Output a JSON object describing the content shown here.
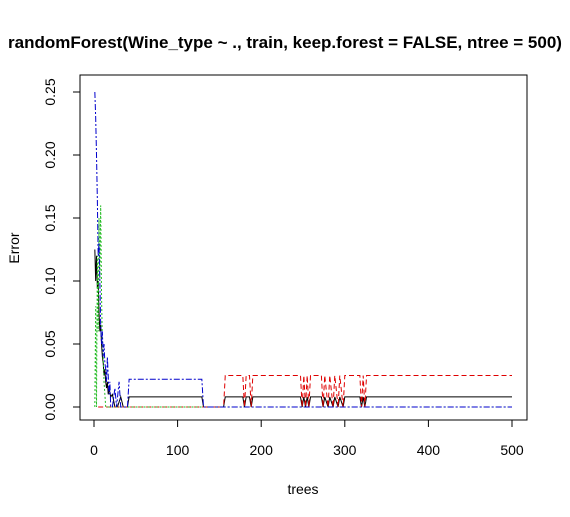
{
  "chart_data": {
    "type": "line",
    "title": "randomForest(Wine_type ~ ., train, keep.forest = FALSE, ntree = 500)",
    "xlabel": "trees",
    "ylabel": "Error",
    "xlim": [
      0,
      500
    ],
    "ylim": [
      0,
      0.25
    ],
    "x_ticks": [
      0,
      100,
      200,
      300,
      400,
      500
    ],
    "y_ticks": [
      0.0,
      0.05,
      0.1,
      0.15,
      0.2,
      0.25
    ],
    "x_tick_labels": [
      "0",
      "100",
      "200",
      "300",
      "400",
      "500"
    ],
    "y_tick_labels": [
      "0.00",
      "0.05",
      "0.10",
      "0.15",
      "0.20",
      "0.25"
    ],
    "grid": false,
    "series": [
      {
        "color": "#000000",
        "dash": "solid",
        "points": [
          [
            1,
            0.125
          ],
          [
            2,
            0.1
          ],
          [
            3,
            0.12
          ],
          [
            4,
            0.095
          ],
          [
            5,
            0.1
          ],
          [
            6,
            0.075
          ],
          [
            7,
            0.06
          ],
          [
            8,
            0.065
          ],
          [
            9,
            0.05
          ],
          [
            10,
            0.04
          ],
          [
            11,
            0.035
          ],
          [
            12,
            0.025
          ],
          [
            13,
            0.03
          ],
          [
            14,
            0.02
          ],
          [
            15,
            0.015
          ],
          [
            16,
            0.02
          ],
          [
            17,
            0.01
          ],
          [
            18,
            0.015
          ],
          [
            20,
            0.008
          ],
          [
            22,
            0.01
          ],
          [
            25,
            0.0
          ],
          [
            28,
            0.0
          ],
          [
            32,
            0.008
          ],
          [
            35,
            0.0
          ],
          [
            40,
            0.0
          ],
          [
            42,
            0.008
          ],
          [
            129,
            0.008
          ],
          [
            131,
            0.0
          ],
          [
            155,
            0.0
          ],
          [
            157,
            0.008
          ],
          [
            178,
            0.008
          ],
          [
            180,
            0.0
          ],
          [
            182,
            0.008
          ],
          [
            186,
            0.008
          ],
          [
            188,
            0.0
          ],
          [
            190,
            0.008
          ],
          [
            247,
            0.008
          ],
          [
            249,
            0.0
          ],
          [
            251,
            0.008
          ],
          [
            253,
            0.0
          ],
          [
            255,
            0.008
          ],
          [
            257,
            0.0
          ],
          [
            259,
            0.008
          ],
          [
            272,
            0.008
          ],
          [
            274,
            0.0
          ],
          [
            276,
            0.008
          ],
          [
            280,
            0.0
          ],
          [
            282,
            0.008
          ],
          [
            286,
            0.0
          ],
          [
            288,
            0.008
          ],
          [
            292,
            0.0
          ],
          [
            294,
            0.008
          ],
          [
            298,
            0.0
          ],
          [
            300,
            0.008
          ],
          [
            318,
            0.008
          ],
          [
            320,
            0.0
          ],
          [
            322,
            0.008
          ],
          [
            324,
            0.0
          ],
          [
            326,
            0.008
          ],
          [
            500,
            0.008
          ]
        ]
      },
      {
        "color": "#DF0000",
        "dash": "5,3",
        "points": [
          [
            5,
            0.0
          ],
          [
            30,
            0.0
          ],
          [
            42,
            0.0
          ],
          [
            155,
            0.0
          ],
          [
            157,
            0.025
          ],
          [
            178,
            0.025
          ],
          [
            180,
            0.0
          ],
          [
            182,
            0.025
          ],
          [
            186,
            0.025
          ],
          [
            188,
            0.0
          ],
          [
            190,
            0.025
          ],
          [
            247,
            0.025
          ],
          [
            249,
            0.0
          ],
          [
            251,
            0.025
          ],
          [
            253,
            0.0
          ],
          [
            255,
            0.025
          ],
          [
            257,
            0.0
          ],
          [
            259,
            0.025
          ],
          [
            272,
            0.025
          ],
          [
            274,
            0.0
          ],
          [
            276,
            0.025
          ],
          [
            280,
            0.0
          ],
          [
            282,
            0.025
          ],
          [
            286,
            0.0
          ],
          [
            288,
            0.025
          ],
          [
            292,
            0.0
          ],
          [
            294,
            0.025
          ],
          [
            298,
            0.0
          ],
          [
            300,
            0.025
          ],
          [
            318,
            0.025
          ],
          [
            320,
            0.0
          ],
          [
            322,
            0.025
          ],
          [
            324,
            0.0
          ],
          [
            326,
            0.025
          ],
          [
            500,
            0.025
          ]
        ]
      },
      {
        "color": "#22BB22",
        "dash": "2,2",
        "points": [
          [
            1,
            0.0
          ],
          [
            2,
            0.08
          ],
          [
            3,
            0.0
          ],
          [
            4,
            0.12
          ],
          [
            5,
            0.06
          ],
          [
            6,
            0.15
          ],
          [
            7,
            0.1
          ],
          [
            8,
            0.16
          ],
          [
            9,
            0.09
          ],
          [
            10,
            0.05
          ],
          [
            11,
            0.04
          ],
          [
            12,
            0.02
          ],
          [
            13,
            0.01
          ],
          [
            14,
            0.0
          ],
          [
            20,
            0.0
          ],
          [
            500,
            0.0
          ]
        ]
      },
      {
        "color": "#0000CC",
        "dash": "6,2,2,2",
        "points": [
          [
            1,
            0.25
          ],
          [
            2,
            0.23
          ],
          [
            3,
            0.2
          ],
          [
            4,
            0.165
          ],
          [
            5,
            0.12
          ],
          [
            6,
            0.13
          ],
          [
            7,
            0.1
          ],
          [
            8,
            0.065
          ],
          [
            9,
            0.05
          ],
          [
            10,
            0.06
          ],
          [
            11,
            0.04
          ],
          [
            12,
            0.05
          ],
          [
            13,
            0.035
          ],
          [
            14,
            0.03
          ],
          [
            15,
            0.02
          ],
          [
            16,
            0.04
          ],
          [
            17,
            0.025
          ],
          [
            18,
            0.01
          ],
          [
            19,
            0.02
          ],
          [
            20,
            0.0
          ],
          [
            22,
            0.0
          ],
          [
            25,
            0.015
          ],
          [
            27,
            0.0
          ],
          [
            30,
            0.02
          ],
          [
            32,
            0.0
          ],
          [
            40,
            0.0
          ],
          [
            42,
            0.022
          ],
          [
            129,
            0.022
          ],
          [
            131,
            0.0
          ],
          [
            500,
            0.0
          ]
        ]
      }
    ]
  }
}
